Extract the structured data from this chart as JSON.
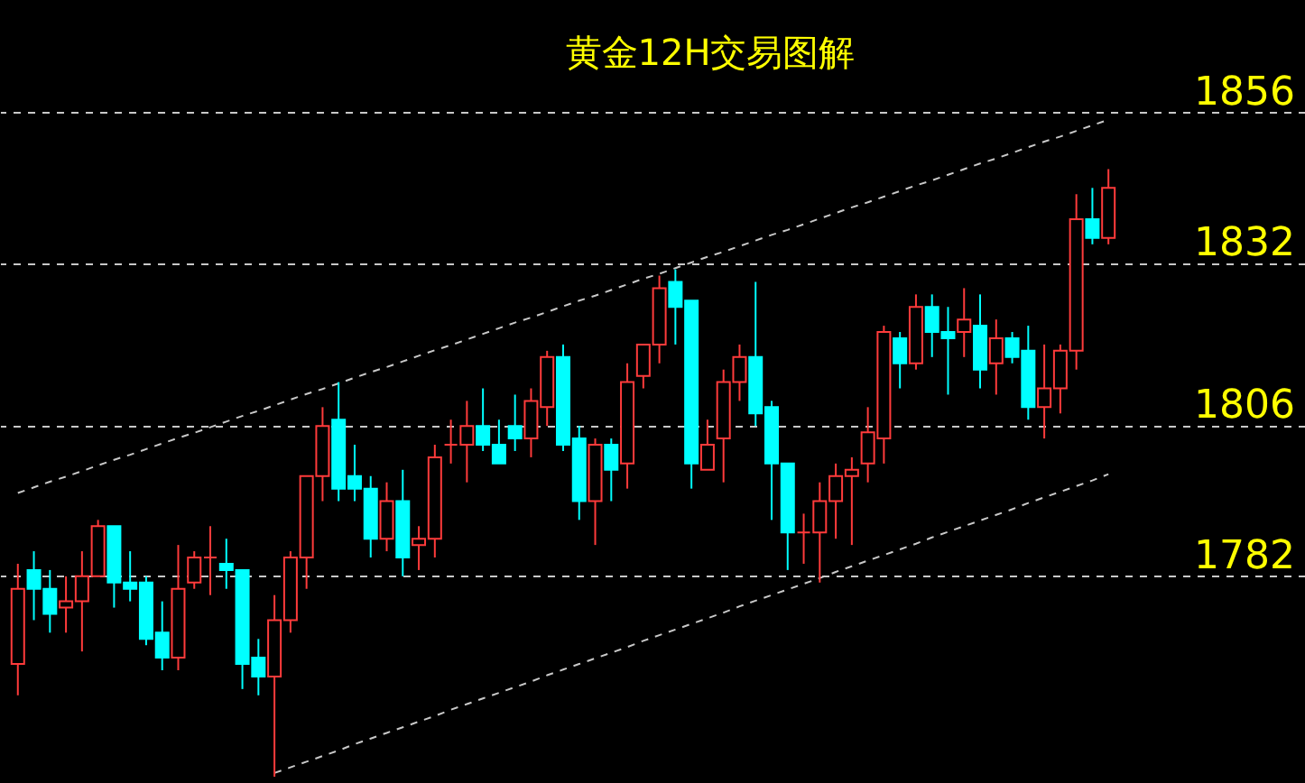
{
  "chart_data": {
    "type": "candlestick",
    "title": "黄金12H交易图解",
    "categories": [
      null,
      null,
      null,
      null,
      null,
      null,
      null,
      null,
      null,
      null,
      null,
      null,
      null,
      null,
      null,
      null,
      null,
      null,
      null,
      null,
      null,
      null,
      null,
      null,
      null,
      null,
      null,
      null,
      null,
      null,
      null,
      null,
      null,
      null,
      null,
      null,
      null,
      null,
      null,
      null,
      null,
      null,
      null,
      null,
      null,
      null,
      null,
      null,
      null,
      null,
      null,
      null,
      null,
      null,
      null,
      null,
      null,
      null,
      null,
      null,
      null,
      null,
      null,
      null,
      null,
      null,
      null,
      null,
      null
    ],
    "ohlc": [
      [
        1768,
        1784,
        1763,
        1780
      ],
      [
        1783,
        1786,
        1775,
        1780
      ],
      [
        1780,
        1783,
        1773,
        1776
      ],
      [
        1777,
        1782,
        1773,
        1778
      ],
      [
        1778,
        1786,
        1770,
        1782
      ],
      [
        1782,
        1791,
        1782,
        1790
      ],
      [
        1790,
        1790,
        1777,
        1781
      ],
      [
        1781,
        1786,
        1778,
        1780
      ],
      [
        1781,
        1782,
        1771,
        1772
      ],
      [
        1773,
        1778,
        1767,
        1769
      ],
      [
        1769,
        1787,
        1767,
        1780
      ],
      [
        1781,
        1786,
        1780,
        1785
      ],
      [
        1785,
        1790,
        1779,
        1785
      ],
      [
        1784,
        1788,
        1780,
        1783
      ],
      [
        1783,
        1783,
        1764,
        1768
      ],
      [
        1769,
        1772,
        1763,
        1766
      ],
      [
        1766,
        1779,
        1750,
        1775
      ],
      [
        1775,
        1786,
        1773,
        1785
      ],
      [
        1785,
        1798,
        1780,
        1798
      ],
      [
        1798,
        1809,
        1794,
        1806
      ],
      [
        1807,
        1813,
        1794,
        1796
      ],
      [
        1798,
        1803,
        1794,
        1796
      ],
      [
        1796,
        1798,
        1785,
        1788
      ],
      [
        1788,
        1797,
        1786,
        1794
      ],
      [
        1794,
        1799,
        1782,
        1785
      ],
      [
        1787,
        1790,
        1783,
        1788
      ],
      [
        1788,
        1803,
        1785,
        1801
      ],
      [
        1803,
        1807,
        1800,
        1803
      ],
      [
        1803,
        1810,
        1797,
        1806
      ],
      [
        1806,
        1812,
        1802,
        1803
      ],
      [
        1803,
        1807,
        1800,
        1800
      ],
      [
        1806,
        1811,
        1802,
        1804
      ],
      [
        1804,
        1812,
        1801,
        1810
      ],
      [
        1809,
        1818,
        1806,
        1817
      ],
      [
        1817,
        1819,
        1802,
        1803
      ],
      [
        1804,
        1806,
        1791,
        1794
      ],
      [
        1794,
        1804,
        1787,
        1803
      ],
      [
        1803,
        1804,
        1794,
        1799
      ],
      [
        1800,
        1816,
        1796,
        1813
      ],
      [
        1814,
        1819,
        1812,
        1819
      ],
      [
        1819,
        1830,
        1816,
        1828
      ],
      [
        1829,
        1831,
        1819,
        1825
      ],
      [
        1826,
        1826,
        1796,
        1800
      ],
      [
        1799,
        1807,
        1799,
        1803
      ],
      [
        1804,
        1815,
        1797,
        1813
      ],
      [
        1813,
        1819,
        1810,
        1817
      ],
      [
        1817,
        1829,
        1806,
        1808
      ],
      [
        1809,
        1810,
        1791,
        1800
      ],
      [
        1800,
        1800,
        1783,
        1789
      ],
      [
        1789,
        1792,
        1784,
        1789
      ],
      [
        1789,
        1797,
        1781,
        1794
      ],
      [
        1794,
        1800,
        1788,
        1798
      ],
      [
        1798,
        1801,
        1787,
        1799
      ],
      [
        1800,
        1809,
        1797,
        1805
      ],
      [
        1804,
        1822,
        1800,
        1821
      ],
      [
        1820,
        1821,
        1812,
        1816
      ],
      [
        1816,
        1827,
        1815,
        1825
      ],
      [
        1825,
        1827,
        1817,
        1821
      ],
      [
        1821,
        1825,
        1811,
        1820
      ],
      [
        1821,
        1828,
        1817,
        1823
      ],
      [
        1822,
        1827,
        1812,
        1815
      ],
      [
        1816,
        1823,
        1811,
        1820
      ],
      [
        1820,
        1821,
        1816,
        1817
      ],
      [
        1818,
        1822,
        1807,
        1809
      ],
      [
        1809,
        1819,
        1804,
        1812
      ],
      [
        1812,
        1819,
        1808,
        1818
      ],
      [
        1818,
        1843,
        1815,
        1839
      ],
      [
        1839,
        1844,
        1835,
        1836
      ],
      [
        1836,
        1847,
        1835,
        1844
      ]
    ],
    "colors": [
      "#ff3b3b",
      "#00ffff",
      "#00ffff",
      "#ff3b3b",
      "#ff3b3b",
      "#ff3b3b",
      "#00ffff",
      "#00ffff",
      "#00ffff",
      "#00ffff",
      "#ff3b3b",
      "#ff3b3b",
      "#ff3b3b",
      "#00ffff",
      "#00ffff",
      "#00ffff",
      "#ff3b3b",
      "#ff3b3b",
      "#ff3b3b",
      "#ff3b3b",
      "#00ffff",
      "#00ffff",
      "#00ffff",
      "#ff3b3b",
      "#00ffff",
      "#ff3b3b",
      "#ff3b3b",
      "#ff3b3b",
      "#ff3b3b",
      "#00ffff",
      "#00ffff",
      "#00ffff",
      "#ff3b3b",
      "#ff3b3b",
      "#00ffff",
      "#00ffff",
      "#ff3b3b",
      "#00ffff",
      "#ff3b3b",
      "#ff3b3b",
      "#ff3b3b",
      "#00ffff",
      "#00ffff",
      "#ff3b3b",
      "#ff3b3b",
      "#ff3b3b",
      "#00ffff",
      "#00ffff",
      "#00ffff",
      "#ff3b3b",
      "#ff3b3b",
      "#ff3b3b",
      "#ff3b3b",
      "#ff3b3b",
      "#ff3b3b",
      "#00ffff",
      "#ff3b3b",
      "#00ffff",
      "#00ffff",
      "#ff3b3b",
      "#00ffff",
      "#ff3b3b",
      "#00ffff",
      "#00ffff",
      "#ff3b3b",
      "#ff3b3b",
      "#ff3b3b",
      "#00ffff",
      "#ff3b3b"
    ],
    "ylim": [
      1749,
      1874
    ],
    "yticks": [
      1782,
      1806,
      1832,
      1856
    ],
    "tick_labels": "y",
    "grid": "y",
    "series": [
      {
        "type": "line",
        "color": "#c8c8c8",
        "line_style": "dashed",
        "values": [
          1795.3,
          1796.2,
          1797.1,
          1797.9,
          1798.8,
          1799.7,
          1800.6,
          1801.4,
          1802.3,
          1803.2,
          1804.1,
          1804.9,
          1805.8,
          1806.7,
          1807.6,
          1808.4,
          1809.3,
          1810.2,
          1811.1,
          1811.9,
          1812.8,
          1813.7,
          1814.6,
          1815.4,
          1816.3,
          1817.2,
          1818.1,
          1818.9,
          1819.8,
          1820.7,
          1821.6,
          1822.5,
          1823.3,
          1824.2,
          1825.1,
          1826.0,
          1826.8,
          1827.7,
          1828.6,
          1829.5,
          1830.3,
          1831.2,
          1832.1,
          1833.0,
          1833.8,
          1834.7,
          1835.6,
          1836.5,
          1837.3,
          1838.2,
          1839.1,
          1840.0,
          1840.9,
          1841.7,
          1842.6,
          1843.5,
          1844.4,
          1845.2,
          1846.1,
          1847.0,
          1847.9,
          1848.7,
          1849.6,
          1850.5,
          1851.4,
          1852.2,
          1853.1,
          1854.0,
          1854.9
        ]
      },
      {
        "type": "line",
        "color": "#c8c8c8",
        "line_style": "dashed",
        "values": [
          null,
          null,
          null,
          null,
          null,
          null,
          null,
          null,
          null,
          null,
          null,
          null,
          null,
          null,
          null,
          null,
          1750.6,
          1751.5,
          1752.4,
          1753.3,
          1754.2,
          1755.2,
          1756.1,
          1757.0,
          1757.9,
          1758.8,
          1759.7,
          1760.7,
          1761.6,
          1762.5,
          1763.4,
          1764.3,
          1765.2,
          1766.2,
          1767.1,
          1768.0,
          1768.9,
          1769.8,
          1770.7,
          1771.7,
          1772.6,
          1773.5,
          1774.4,
          1775.3,
          1776.2,
          1777.2,
          1778.1,
          1779.0,
          1779.9,
          1780.8,
          1781.7,
          1782.7,
          1783.6,
          1784.5,
          1785.4,
          1786.3,
          1787.2,
          1788.2,
          1789.1,
          1790.0,
          1790.9,
          1791.8,
          1792.7,
          1793.7,
          1794.6,
          1795.5,
          1796.4,
          1797.3,
          1798.3
        ]
      }
    ]
  }
}
